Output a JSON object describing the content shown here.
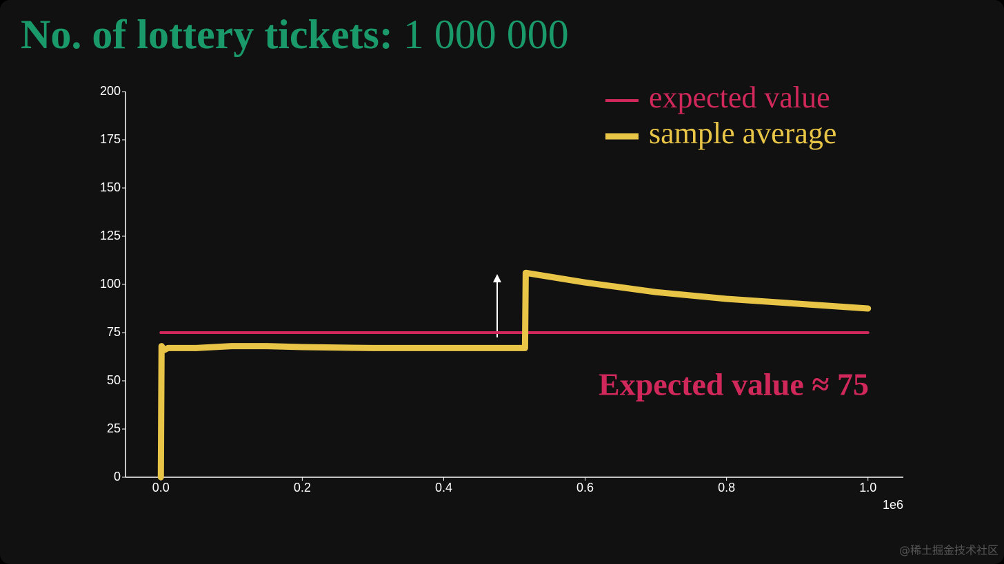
{
  "chart_data": {
    "type": "line",
    "title": "No. of lottery tickets:",
    "subtitle": "1 000 000",
    "xlim": [
      -50000,
      1050000
    ],
    "xticks": [
      {
        "value": 0,
        "label": "0.0"
      },
      {
        "value": 200000,
        "label": "0.2"
      },
      {
        "value": 400000,
        "label": "0.4"
      },
      {
        "value": 600000,
        "label": "0.6"
      },
      {
        "value": 800000,
        "label": "0.8"
      },
      {
        "value": 1000000,
        "label": "1.0"
      }
    ],
    "x_offset_label": "1e6",
    "ylim": [
      0,
      200
    ],
    "yticks": [
      0,
      25,
      50,
      75,
      100,
      125,
      150,
      175,
      200
    ],
    "legend": "upper right",
    "series": [
      {
        "name": "expected value",
        "color": "#d0285a",
        "x": [
          0,
          1000000
        ],
        "values": [
          75,
          75
        ]
      },
      {
        "name": "sample average",
        "color": "#e8c547",
        "x": [
          0,
          1000,
          5000,
          10000,
          20000,
          50000,
          100000,
          150000,
          200000,
          300000,
          400000,
          515000,
          516000,
          600000,
          700000,
          800000,
          900000,
          1000000
        ],
        "values": [
          0,
          68,
          66,
          67,
          67,
          67,
          68,
          68,
          67.5,
          67,
          67,
          67,
          106,
          101,
          96,
          92.5,
          90,
          87.5
        ]
      }
    ],
    "annotation": "Expected value ≈ 75",
    "watermark": "@稀土掘金技术社区"
  }
}
